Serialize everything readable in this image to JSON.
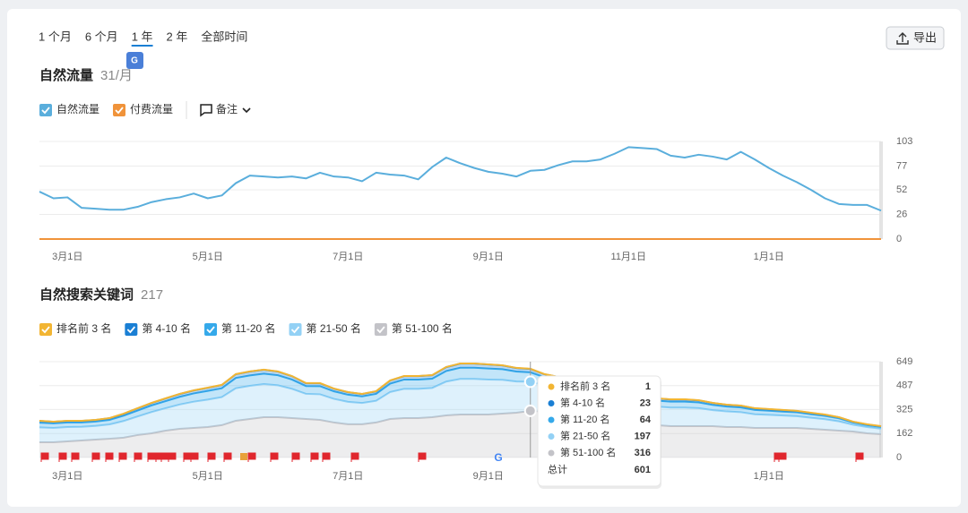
{
  "ui": {
    "tabs": [
      "1 个月",
      "6 个月",
      "1 年",
      "2 年",
      "全部时间"
    ],
    "active_tab": "1 年",
    "export": "导出"
  },
  "chart_data": [
    {
      "type": "line",
      "title": "自然流量",
      "subtitle": "31/月",
      "note": "备注",
      "categories": [
        null,
        null,
        "3月1日",
        null,
        null,
        null,
        null,
        null,
        null,
        null,
        null,
        null,
        "5月1日",
        null,
        null,
        null,
        null,
        null,
        null,
        null,
        null,
        null,
        "7月1日",
        null,
        null,
        null,
        null,
        null,
        null,
        null,
        null,
        null,
        "9月1日",
        null,
        null,
        null,
        null,
        null,
        null,
        null,
        null,
        null,
        "11月1日",
        null,
        null,
        null,
        null,
        null,
        null,
        null,
        null,
        null,
        "1月1日",
        null,
        null,
        null,
        null,
        null,
        null,
        null,
        null
      ],
      "series": [
        {
          "name": "自然流量",
          "color": "#5aaedc",
          "values": [
            50,
            43,
            44,
            33,
            32,
            31,
            31,
            34,
            39,
            42,
            44,
            48,
            43,
            46,
            59,
            67,
            66,
            65,
            66,
            64,
            70,
            66,
            65,
            61,
            70,
            68,
            67,
            63,
            76,
            86,
            80,
            75,
            71,
            69,
            66,
            72,
            73,
            78,
            82,
            82,
            84,
            90,
            97,
            96,
            95,
            88,
            86,
            89,
            87,
            84,
            92,
            84,
            75,
            67,
            60,
            52,
            43,
            37,
            36,
            36,
            30
          ]
        },
        {
          "name": "付费流量",
          "color": "#f0933a",
          "values": [
            0,
            0,
            0,
            0,
            0,
            0,
            0,
            0,
            0,
            0,
            0,
            0,
            0,
            0,
            0,
            0,
            0,
            0,
            0,
            0,
            0,
            0,
            0,
            0,
            0,
            0,
            0,
            0,
            0,
            0,
            0,
            0,
            0,
            0,
            0,
            0,
            0,
            0,
            0,
            0,
            0,
            0,
            0,
            0,
            0,
            0,
            0,
            0,
            0,
            0,
            0,
            0,
            0,
            0,
            0,
            0,
            0,
            0,
            0,
            0,
            0
          ]
        }
      ],
      "ylim": [
        0,
        103
      ],
      "yticks": [
        0,
        26,
        52,
        77,
        103
      ],
      "grid": true
    },
    {
      "type": "area",
      "stacked": true,
      "title": "自然搜索关键词",
      "subtitle": 217,
      "categories": [
        null,
        null,
        "3月1日",
        null,
        null,
        null,
        null,
        null,
        null,
        null,
        null,
        null,
        "5月1日",
        null,
        null,
        null,
        null,
        null,
        null,
        null,
        null,
        null,
        "7月1日",
        null,
        null,
        null,
        null,
        null,
        null,
        null,
        null,
        null,
        "9月1日",
        null,
        null,
        null,
        null,
        null,
        null,
        null,
        null,
        null,
        "11月1日",
        null,
        null,
        null,
        null,
        null,
        null,
        null,
        null,
        null,
        "1月1日",
        null,
        null,
        null,
        null,
        null,
        null,
        null,
        null
      ],
      "series": [
        {
          "name": "排名前 3 名",
          "color": "#f2b533",
          "values": [
            1,
            1,
            1,
            1,
            1,
            1,
            1,
            1,
            1,
            1,
            1,
            1,
            1,
            1,
            1,
            1,
            1,
            1,
            1,
            1,
            1,
            1,
            1,
            1,
            1,
            1,
            1,
            1,
            1,
            1,
            1,
            1,
            1,
            1,
            1,
            1,
            1,
            1,
            1,
            1,
            1,
            1,
            1,
            1,
            1,
            1,
            1,
            1,
            1,
            1,
            1,
            1,
            1,
            1,
            1,
            1,
            1,
            1,
            1,
            1,
            1
          ]
        },
        {
          "name": "第 4-10 名",
          "color": "#1a7fd4",
          "values": [
            12,
            11,
            11,
            11,
            11,
            11,
            13,
            15,
            16,
            18,
            19,
            20,
            21,
            22,
            25,
            26,
            26,
            25,
            23,
            19,
            20,
            18,
            17,
            16,
            17,
            21,
            23,
            23,
            23,
            26,
            28,
            28,
            27,
            26,
            24,
            23,
            20,
            20,
            18,
            18,
            16,
            16,
            16,
            15,
            15,
            15,
            15,
            14,
            13,
            12,
            12,
            11,
            10,
            10,
            9,
            9,
            8,
            7,
            5,
            5,
            4
          ]
        },
        {
          "name": "第 11-20 名",
          "color": "#35a9ea",
          "values": [
            32,
            31,
            31,
            29,
            29,
            31,
            36,
            40,
            45,
            48,
            52,
            56,
            59,
            60,
            70,
            71,
            71,
            68,
            63,
            53,
            55,
            51,
            48,
            45,
            47,
            57,
            63,
            63,
            63,
            72,
            76,
            76,
            75,
            72,
            67,
            64,
            56,
            55,
            50,
            48,
            45,
            44,
            43,
            41,
            40,
            40,
            40,
            39,
            35,
            33,
            32,
            29,
            28,
            27,
            26,
            24,
            23,
            20,
            15,
            13,
            12
          ]
        },
        {
          "name": "第 21-50 名",
          "color": "#93d1f5",
          "values": [
            101,
            97,
            97,
            93,
            93,
            97,
            113,
            126,
            144,
            152,
            165,
            178,
            186,
            190,
            220,
            224,
            224,
            216,
            198,
            170,
            173,
            160,
            152,
            144,
            147,
            182,
            198,
            198,
            198,
            229,
            241,
            241,
            237,
            229,
            212,
            197,
            178,
            173,
            156,
            152,
            144,
            139,
            134,
            131,
            126,
            126,
            126,
            122,
            109,
            106,
            101,
            93,
            89,
            84,
            80,
            75,
            71,
            63,
            46,
            42,
            37
          ]
        },
        {
          "name": "第 51-100 名",
          "color": "#c3c3c8",
          "values": [
            103,
            103,
            109,
            115,
            121,
            127,
            134,
            152,
            164,
            182,
            194,
            200,
            206,
            219,
            249,
            261,
            273,
            273,
            267,
            261,
            255,
            237,
            225,
            225,
            237,
            261,
            267,
            267,
            273,
            285,
            291,
            291,
            291,
            297,
            303,
            316,
            310,
            297,
            279,
            261,
            249,
            237,
            225,
            219,
            219,
            212,
            212,
            212,
            212,
            206,
            206,
            200,
            200,
            200,
            200,
            194,
            188,
            182,
            176,
            164,
            158
          ]
        }
      ],
      "ylim": [
        0,
        649
      ],
      "yticks": [
        0,
        162,
        325,
        487,
        649
      ],
      "grid": true,
      "tooltip": {
        "total_label": "总计",
        "total": 601
      }
    }
  ]
}
